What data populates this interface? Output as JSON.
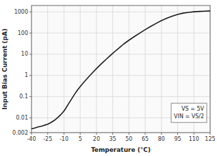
{
  "chart_data": {
    "type": "line",
    "x_label": "Temperature (°C)",
    "y_label": "Input Bias Current (pA)",
    "annotations": [
      "VS = 5V",
      "VIN = VS/2"
    ],
    "x": [
      -40,
      -37,
      -34,
      -31,
      -28,
      -25,
      -22,
      -19,
      -16,
      -13,
      -10,
      -8,
      -6,
      -4,
      -2,
      0,
      2,
      5,
      8,
      11,
      14,
      17,
      20,
      23,
      26,
      29,
      32,
      35,
      38,
      41,
      45,
      50,
      55,
      60,
      65,
      70,
      75,
      80,
      85,
      90,
      95,
      100,
      105,
      110,
      115,
      120,
      125
    ],
    "values": [
      0.003,
      0.0033,
      0.0037,
      0.004,
      0.0045,
      0.005,
      0.006,
      0.0075,
      0.01,
      0.014,
      0.021,
      0.03,
      0.044,
      0.064,
      0.093,
      0.135,
      0.19,
      0.3,
      0.46,
      0.68,
      1.0,
      1.45,
      2.1,
      3.0,
      4.2,
      5.8,
      8.0,
      11.0,
      15.0,
      20.0,
      30.0,
      46,
      68,
      100,
      145,
      205,
      285,
      385,
      500,
      630,
      760,
      870,
      950,
      1010,
      1050,
      1080,
      1110
    ],
    "color": "#1a1a1a",
    "log": "y",
    "grid": true,
    "xlim": [
      -40,
      125
    ],
    "ylim": [
      0.002,
      2000
    ],
    "xticks": [
      -40,
      -25,
      -10,
      5,
      20,
      35,
      50,
      65,
      80,
      95,
      110,
      125
    ],
    "yticks": [
      0.002,
      0.01,
      0.1,
      1,
      10,
      100,
      1000
    ]
  }
}
